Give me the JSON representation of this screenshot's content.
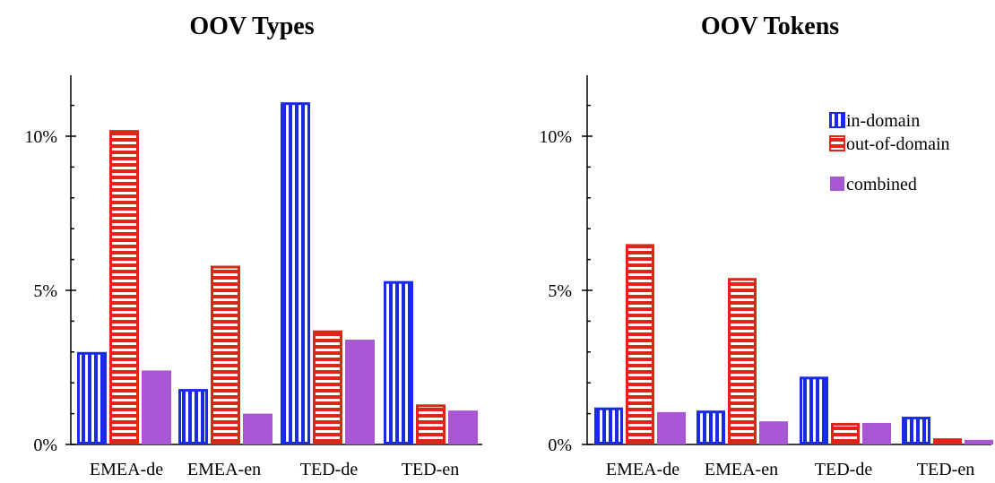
{
  "chart_data": [
    {
      "type": "bar",
      "title": "OOV Types",
      "categories": [
        "EMEA-de",
        "EMEA-en",
        "TED-de",
        "TED-en"
      ],
      "ylim": [
        0,
        12
      ],
      "yticks": [
        0,
        5,
        10
      ],
      "ytick_labels": [
        "0%",
        "5%",
        "10%"
      ],
      "grid": false,
      "series": [
        {
          "name": "in-domain",
          "values": [
            3.0,
            1.8,
            11.1,
            5.3
          ]
        },
        {
          "name": "out-of-domain",
          "values": [
            10.2,
            5.8,
            3.7,
            1.3
          ]
        },
        {
          "name": "combined",
          "values": [
            2.4,
            1.0,
            3.4,
            1.1
          ]
        }
      ]
    },
    {
      "type": "bar",
      "title": "OOV Tokens",
      "categories": [
        "EMEA-de",
        "EMEA-en",
        "TED-de",
        "TED-en"
      ],
      "ylim": [
        0,
        12
      ],
      "yticks": [
        0,
        5,
        10
      ],
      "ytick_labels": [
        "0%",
        "5%",
        "10%"
      ],
      "grid": false,
      "legend_position": "top-right",
      "series": [
        {
          "name": "in-domain",
          "values": [
            1.2,
            1.1,
            2.2,
            0.9
          ]
        },
        {
          "name": "out-of-domain",
          "values": [
            6.5,
            5.4,
            0.7,
            0.2
          ]
        },
        {
          "name": "combined",
          "values": [
            1.05,
            0.75,
            0.7,
            0.15
          ]
        }
      ]
    }
  ],
  "colors": {
    "in_domain": "#1a2ae6",
    "out_of_domain": "#e0241a",
    "combined": "#a855d6"
  }
}
